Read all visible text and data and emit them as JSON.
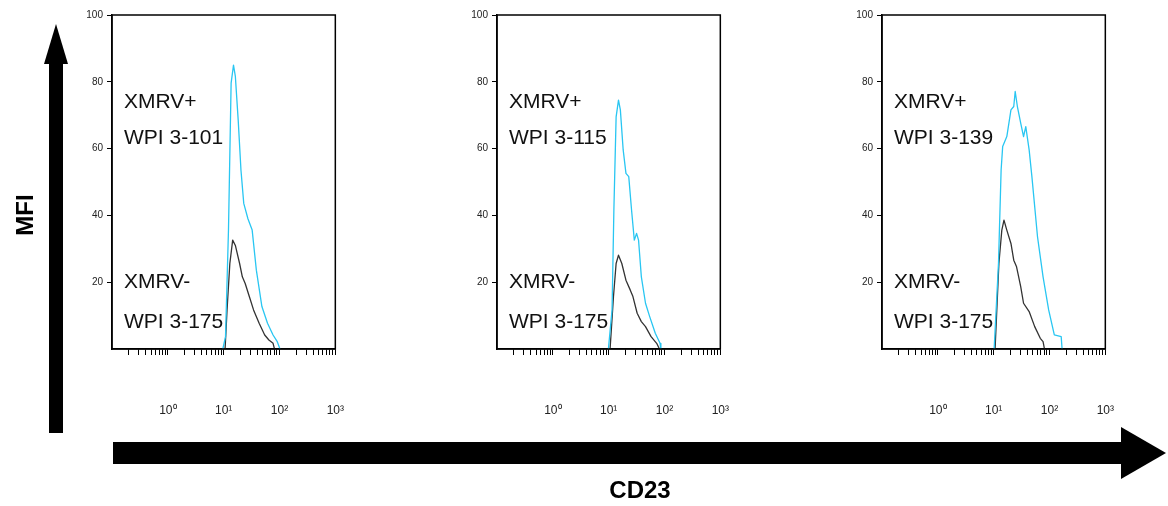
{
  "chart_data": [
    {
      "type": "line",
      "ylabel": "MFI",
      "log": "x",
      "marker": "none",
      "line_style": "solid",
      "xlim": [
        0.1,
        1000
      ],
      "ylim": [
        0,
        100
      ],
      "xticks": [
        {
          "value": 0.2,
          "label": null
        },
        {
          "value": 0.3,
          "label": null
        },
        {
          "value": 0.4,
          "label": null
        },
        {
          "value": 0.5,
          "label": null
        },
        {
          "value": 0.6,
          "label": null
        },
        {
          "value": 0.7,
          "label": null
        },
        {
          "value": 0.8,
          "label": null
        },
        {
          "value": 0.9,
          "label": null
        },
        {
          "value": 1,
          "label": "10⁰"
        },
        {
          "value": 2,
          "label": null
        },
        {
          "value": 3,
          "label": null
        },
        {
          "value": 4,
          "label": null
        },
        {
          "value": 5,
          "label": null
        },
        {
          "value": 6,
          "label": null
        },
        {
          "value": 7,
          "label": null
        },
        {
          "value": 8,
          "label": null
        },
        {
          "value": 9,
          "label": null
        },
        {
          "value": 10,
          "label": "10¹"
        },
        {
          "value": 20,
          "label": null
        },
        {
          "value": 30,
          "label": null
        },
        {
          "value": 40,
          "label": null
        },
        {
          "value": 50,
          "label": null
        },
        {
          "value": 60,
          "label": null
        },
        {
          "value": 70,
          "label": null
        },
        {
          "value": 80,
          "label": null
        },
        {
          "value": 90,
          "label": null
        },
        {
          "value": 100,
          "label": "10²"
        },
        {
          "value": 200,
          "label": null
        },
        {
          "value": 300,
          "label": null
        },
        {
          "value": 400,
          "label": null
        },
        {
          "value": 500,
          "label": null
        },
        {
          "value": 600,
          "label": null
        },
        {
          "value": 700,
          "label": null
        },
        {
          "value": 800,
          "label": null
        },
        {
          "value": 900,
          "label": null
        },
        {
          "value": 1000,
          "label": "10³"
        }
      ],
      "yticks": [
        20,
        40,
        60,
        80,
        100
      ],
      "annotations": [
        "XMRV+",
        "WPI 3-101",
        "XMRV-",
        "WPI 3-175"
      ],
      "series": [
        {
          "color": "#29c6f2",
          "x": [
            9.66,
            10.8,
            12.2,
            13.6,
            15.0,
            16.2,
            18.2,
            20.4,
            22.9,
            27.2,
            32.4,
            38.5,
            48.4,
            61.0,
            76.7,
            91.2,
            102
          ],
          "values": [
            0,
            3.7,
            35.7,
            79.6,
            85,
            81.6,
            68.6,
            53.6,
            43.6,
            39,
            35.6,
            23.6,
            12.7,
            7.7,
            4.2,
            2.2,
            0
          ]
        },
        {
          "color": "#333333",
          "x": [
            10.6,
            11.5,
            12.9,
            14.5,
            16.2,
            19.3,
            21.6,
            24.3,
            28.8,
            34.3,
            43.2,
            54.3,
            64.6,
            76.7,
            81.3
          ],
          "values": [
            0,
            11.7,
            25.6,
            32.6,
            31,
            25.6,
            21.6,
            19.6,
            15.7,
            11.7,
            7.7,
            4.2,
            2.7,
            1.7,
            0
          ]
        }
      ]
    },
    {
      "type": "line",
      "xlabel": "CD23",
      "log": "x",
      "marker": "none",
      "line_style": "solid",
      "xlim": [
        0.1,
        1000
      ],
      "ylim": [
        0,
        100
      ],
      "xticks": [
        {
          "value": 0.2,
          "label": null
        },
        {
          "value": 0.3,
          "label": null
        },
        {
          "value": 0.4,
          "label": null
        },
        {
          "value": 0.5,
          "label": null
        },
        {
          "value": 0.6,
          "label": null
        },
        {
          "value": 0.7,
          "label": null
        },
        {
          "value": 0.8,
          "label": null
        },
        {
          "value": 0.9,
          "label": null
        },
        {
          "value": 1,
          "label": "10⁰"
        },
        {
          "value": 2,
          "label": null
        },
        {
          "value": 3,
          "label": null
        },
        {
          "value": 4,
          "label": null
        },
        {
          "value": 5,
          "label": null
        },
        {
          "value": 6,
          "label": null
        },
        {
          "value": 7,
          "label": null
        },
        {
          "value": 8,
          "label": null
        },
        {
          "value": 9,
          "label": null
        },
        {
          "value": 10,
          "label": "10¹"
        },
        {
          "value": 20,
          "label": null
        },
        {
          "value": 30,
          "label": null
        },
        {
          "value": 40,
          "label": null
        },
        {
          "value": 50,
          "label": null
        },
        {
          "value": 60,
          "label": null
        },
        {
          "value": 70,
          "label": null
        },
        {
          "value": 80,
          "label": null
        },
        {
          "value": 90,
          "label": null
        },
        {
          "value": 100,
          "label": "10²"
        },
        {
          "value": 200,
          "label": null
        },
        {
          "value": 300,
          "label": null
        },
        {
          "value": 400,
          "label": null
        },
        {
          "value": 500,
          "label": null
        },
        {
          "value": 600,
          "label": null
        },
        {
          "value": 700,
          "label": null
        },
        {
          "value": 800,
          "label": null
        },
        {
          "value": 900,
          "label": null
        },
        {
          "value": 1000,
          "label": "10³"
        }
      ],
      "yticks": [
        20,
        40,
        60,
        80,
        100
      ],
      "annotations": [
        "XMRV+",
        "WPI 3-115",
        "XMRV-",
        "WPI 3-175"
      ],
      "series": [
        {
          "color": "#29c6f2",
          "x": [
            9.89,
            11.5,
            12.4,
            13.6,
            15.0,
            16.2,
            18.2,
            20.4,
            22.9,
            25.7,
            28.8,
            31.6,
            34.3,
            38.5,
            45.7,
            54.3,
            68.4,
            83.2,
            86.1
          ],
          "values": [
            0,
            11.7,
            41.6,
            69.5,
            74.5,
            71.6,
            59.6,
            52.6,
            51.6,
            41.6,
            32.6,
            34.6,
            32.6,
            21.6,
            13.7,
            9.7,
            4.7,
            1.7,
            0
          ]
        },
        {
          "color": "#333333",
          "x": [
            10.6,
            12.2,
            13.6,
            15.0,
            17.2,
            20.4,
            24.3,
            27.2,
            32.4,
            38.5,
            45.7,
            57.5,
            72.4,
            81.3
          ],
          "values": [
            0,
            15.7,
            25.6,
            28.1,
            25.6,
            20.6,
            17.7,
            15.7,
            10.7,
            8.2,
            6.7,
            3.7,
            1.7,
            0
          ]
        }
      ]
    },
    {
      "type": "line",
      "log": "x",
      "marker": "none",
      "line_style": "solid",
      "xlim": [
        0.1,
        1000
      ],
      "ylim": [
        0,
        100
      ],
      "xticks": [
        {
          "value": 0.2,
          "label": null
        },
        {
          "value": 0.3,
          "label": null
        },
        {
          "value": 0.4,
          "label": null
        },
        {
          "value": 0.5,
          "label": null
        },
        {
          "value": 0.6,
          "label": null
        },
        {
          "value": 0.7,
          "label": null
        },
        {
          "value": 0.8,
          "label": null
        },
        {
          "value": 0.9,
          "label": null
        },
        {
          "value": 1,
          "label": "10⁰"
        },
        {
          "value": 2,
          "label": null
        },
        {
          "value": 3,
          "label": null
        },
        {
          "value": 4,
          "label": null
        },
        {
          "value": 5,
          "label": null
        },
        {
          "value": 6,
          "label": null
        },
        {
          "value": 7,
          "label": null
        },
        {
          "value": 8,
          "label": null
        },
        {
          "value": 9,
          "label": null
        },
        {
          "value": 10,
          "label": "10¹"
        },
        {
          "value": 20,
          "label": null
        },
        {
          "value": 30,
          "label": null
        },
        {
          "value": 40,
          "label": null
        },
        {
          "value": 50,
          "label": null
        },
        {
          "value": 60,
          "label": null
        },
        {
          "value": 70,
          "label": null
        },
        {
          "value": 80,
          "label": null
        },
        {
          "value": 90,
          "label": null
        },
        {
          "value": 100,
          "label": "10²"
        },
        {
          "value": 200,
          "label": null
        },
        {
          "value": 300,
          "label": null
        },
        {
          "value": 400,
          "label": null
        },
        {
          "value": 500,
          "label": null
        },
        {
          "value": 600,
          "label": null
        },
        {
          "value": 700,
          "label": null
        },
        {
          "value": 800,
          "label": null
        },
        {
          "value": 900,
          "label": null
        },
        {
          "value": 1000,
          "label": "10³"
        }
      ],
      "yticks": [
        20,
        40,
        60,
        80,
        100
      ],
      "annotations": [
        "XMRV+",
        "WPI 3-139",
        "XMRV-",
        "WPI 3-175"
      ],
      "series": [
        {
          "color": "#29c6f2",
          "x": [
            10.2,
            12.2,
            13.6,
            14.5,
            17.2,
            20.4,
            22.9,
            24.3,
            26.6,
            30.5,
            34.3,
            37.6,
            43.2,
            48.4,
            61.0,
            76.7,
            96.6,
            122,
            162,
            168
          ],
          "values": [
            0,
            25.6,
            53.6,
            60.6,
            63.6,
            71.6,
            72.6,
            77.1,
            72.6,
            67.6,
            63.6,
            66.6,
            59.6,
            51.6,
            33.6,
            21.6,
            11.7,
            4.2,
            3.7,
            0
          ]
        },
        {
          "color": "#333333",
          "x": [
            10.6,
            12.4,
            14.0,
            15.3,
            17.2,
            20.4,
            22.9,
            25.7,
            30.5,
            34.3,
            43.2,
            54.3,
            68.4,
            76.7,
            81.3
          ],
          "values": [
            0,
            25.6,
            35.6,
            38.6,
            35.6,
            31.6,
            26.6,
            24.6,
            18.7,
            13.7,
            11.2,
            6.7,
            3.2,
            2.2,
            0
          ]
        }
      ]
    }
  ]
}
